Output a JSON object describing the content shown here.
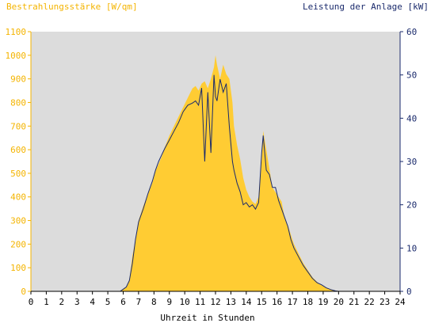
{
  "chart_data": {
    "type": "area",
    "title_left": "Bestrahlungsstärke [W/qm]",
    "title_right": "Leistung der Anlage [kW]",
    "xlabel": "Uhrzeit in Stunden",
    "xlim": [
      0,
      24
    ],
    "x_ticks": [
      "0",
      "1",
      "2",
      "3",
      "4",
      "5",
      "6",
      "7",
      "8",
      "9",
      "10",
      "11",
      "12",
      "13",
      "14",
      "15",
      "16",
      "17",
      "18",
      "19",
      "20",
      "21",
      "22",
      "23",
      "24"
    ],
    "y_left": {
      "lim": [
        0,
        1100
      ],
      "ticks": [
        "0",
        "100",
        "200",
        "300",
        "400",
        "500",
        "600",
        "700",
        "800",
        "900",
        "1000",
        "1100"
      ]
    },
    "y_right": {
      "lim": [
        0,
        60
      ],
      "ticks": [
        "0",
        "10",
        "20",
        "30",
        "40",
        "50",
        "60"
      ]
    },
    "grid": false,
    "colors": {
      "plot_bg": "#dcdcdc",
      "irradiance": "#ffcc33",
      "power": "#1a2a6c",
      "left_axis": "#f4b400",
      "right_axis": "#1a2a6c"
    },
    "series": [
      {
        "name": "Bestrahlungsstärke [W/qm]",
        "axis": "left",
        "style": "area",
        "x": [
          0,
          5.8,
          6.0,
          6.2,
          6.4,
          6.6,
          6.8,
          7.0,
          7.3,
          7.6,
          7.9,
          8.1,
          8.3,
          8.5,
          8.7,
          9.0,
          9.3,
          9.6,
          9.9,
          10.2,
          10.5,
          10.7,
          10.9,
          11.1,
          11.3,
          11.5,
          11.7,
          11.9,
          12.0,
          12.1,
          12.3,
          12.5,
          12.7,
          12.9,
          13.1,
          13.2,
          13.4,
          13.6,
          13.8,
          14.0,
          14.2,
          14.4,
          14.6,
          14.8,
          15.0,
          15.1,
          15.3,
          15.5,
          15.7,
          15.9,
          16.1,
          16.3,
          16.5,
          16.7,
          16.9,
          17.1,
          17.4,
          17.7,
          18.0,
          18.3,
          18.6,
          18.9,
          19.2,
          19.5,
          19.8,
          20.0,
          24
        ],
        "y": [
          0,
          0,
          10,
          20,
          50,
          150,
          220,
          300,
          360,
          410,
          460,
          510,
          540,
          570,
          610,
          660,
          700,
          740,
          780,
          820,
          860,
          870,
          850,
          880,
          890,
          860,
          900,
          950,
          1000,
          960,
          900,
          960,
          920,
          900,
          800,
          700,
          620,
          560,
          480,
          430,
          400,
          380,
          370,
          400,
          560,
          680,
          600,
          520,
          440,
          420,
          400,
          380,
          310,
          280,
          240,
          200,
          160,
          120,
          90,
          60,
          40,
          25,
          15,
          8,
          3,
          0,
          0
        ]
      },
      {
        "name": "Leistung der Anlage [kW]",
        "axis": "right",
        "style": "line",
        "x": [
          0,
          5.8,
          6.0,
          6.2,
          6.4,
          6.6,
          6.8,
          7.0,
          7.3,
          7.6,
          7.9,
          8.1,
          8.3,
          8.5,
          8.7,
          9.0,
          9.3,
          9.6,
          9.9,
          10.2,
          10.5,
          10.7,
          10.9,
          11.1,
          11.3,
          11.5,
          11.7,
          11.9,
          12.0,
          12.1,
          12.3,
          12.5,
          12.7,
          12.9,
          13.1,
          13.2,
          13.4,
          13.6,
          13.8,
          14.0,
          14.2,
          14.4,
          14.6,
          14.8,
          15.0,
          15.1,
          15.3,
          15.5,
          15.7,
          15.9,
          16.1,
          16.3,
          16.5,
          16.7,
          16.9,
          17.1,
          17.4,
          17.7,
          18.0,
          18.3,
          18.6,
          18.9,
          19.2,
          19.5,
          19.8,
          20.0,
          24
        ],
        "y": [
          0,
          0,
          0.5,
          1,
          2.5,
          6.5,
          12,
          16,
          19,
          22.5,
          25.5,
          28,
          30,
          31.5,
          33,
          35,
          37,
          39,
          41.5,
          43,
          43.5,
          44,
          43,
          47,
          30,
          46,
          32,
          50,
          45,
          44,
          49,
          46,
          48,
          38,
          30,
          28,
          25,
          23,
          20,
          20.5,
          19.5,
          20,
          19,
          20.5,
          32,
          36,
          28,
          27,
          24,
          24,
          21,
          19,
          17,
          15,
          12,
          10,
          8,
          6,
          4.5,
          3,
          2,
          1.5,
          0.8,
          0.4,
          0.1,
          0,
          0
        ]
      }
    ]
  }
}
